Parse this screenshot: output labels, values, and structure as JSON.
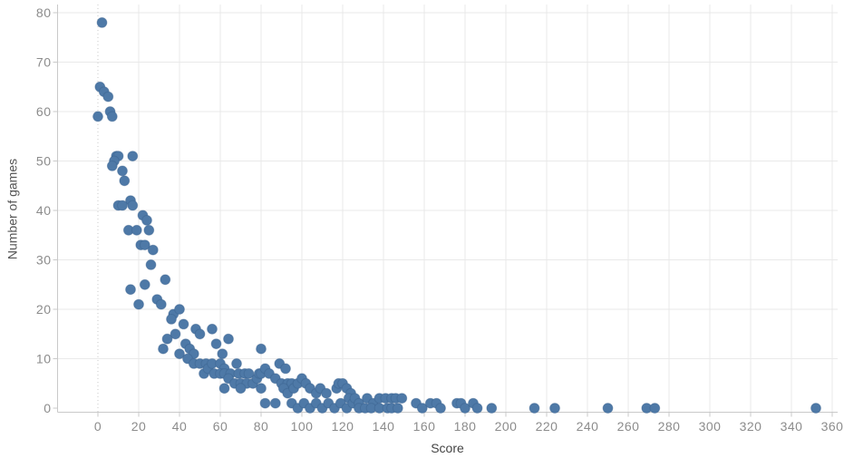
{
  "chart_data": {
    "type": "scatter",
    "title": "",
    "xlabel": "Score",
    "ylabel": "Number of games",
    "x_ticks": [
      0,
      20,
      40,
      60,
      80,
      100,
      120,
      140,
      160,
      180,
      200,
      220,
      240,
      260,
      280,
      300,
      320,
      340,
      360
    ],
    "y_ticks": [
      0,
      10,
      20,
      30,
      40,
      50,
      60,
      70,
      80
    ],
    "xlim": [
      -20,
      363
    ],
    "ylim": [
      -1,
      82
    ],
    "grid": "on",
    "zero_line": "dotted-vertical-at-x0",
    "points": [
      [
        2,
        78
      ],
      [
        1,
        65
      ],
      [
        3,
        64
      ],
      [
        5,
        63
      ],
      [
        0,
        59
      ],
      [
        6,
        60
      ],
      [
        7,
        59
      ],
      [
        9,
        51
      ],
      [
        10,
        51
      ],
      [
        17,
        51
      ],
      [
        8,
        50
      ],
      [
        7,
        49
      ],
      [
        12,
        48
      ],
      [
        13,
        46
      ],
      [
        16,
        42
      ],
      [
        17,
        41
      ],
      [
        10,
        41
      ],
      [
        12,
        41
      ],
      [
        22,
        39
      ],
      [
        24,
        38
      ],
      [
        15,
        36
      ],
      [
        19,
        36
      ],
      [
        25,
        36
      ],
      [
        21,
        33
      ],
      [
        23,
        33
      ],
      [
        27,
        32
      ],
      [
        26,
        29
      ],
      [
        33,
        26
      ],
      [
        23,
        25
      ],
      [
        16,
        24
      ],
      [
        29,
        22
      ],
      [
        31,
        21
      ],
      [
        20,
        21
      ],
      [
        37,
        19
      ],
      [
        36,
        18
      ],
      [
        40,
        20
      ],
      [
        42,
        17
      ],
      [
        48,
        16
      ],
      [
        38,
        15
      ],
      [
        34,
        14
      ],
      [
        32,
        12
      ],
      [
        43,
        13
      ],
      [
        45,
        12
      ],
      [
        40,
        11
      ],
      [
        47,
        11
      ],
      [
        50,
        15
      ],
      [
        56,
        16
      ],
      [
        58,
        13
      ],
      [
        61,
        11
      ],
      [
        64,
        14
      ],
      [
        44,
        10
      ],
      [
        47,
        9
      ],
      [
        50,
        9
      ],
      [
        53,
        9
      ],
      [
        52,
        7
      ],
      [
        54,
        8
      ],
      [
        56,
        9
      ],
      [
        60,
        9
      ],
      [
        68,
        9
      ],
      [
        62,
        8
      ],
      [
        57,
        7
      ],
      [
        60,
        7
      ],
      [
        62,
        7
      ],
      [
        65,
        7
      ],
      [
        69,
        7
      ],
      [
        72,
        7
      ],
      [
        74,
        7
      ],
      [
        64,
        6
      ],
      [
        67,
        5
      ],
      [
        70,
        5
      ],
      [
        73,
        5
      ],
      [
        76,
        5
      ],
      [
        78,
        6
      ],
      [
        62,
        4
      ],
      [
        70,
        4
      ],
      [
        80,
        4
      ],
      [
        79,
        7
      ],
      [
        80,
        7
      ],
      [
        82,
        8
      ],
      [
        84,
        7
      ],
      [
        80,
        12
      ],
      [
        89,
        9
      ],
      [
        92,
        8
      ],
      [
        87,
        6
      ],
      [
        90,
        5
      ],
      [
        93,
        5
      ],
      [
        95,
        5
      ],
      [
        91,
        4
      ],
      [
        93,
        3
      ],
      [
        82,
        1
      ],
      [
        87,
        1
      ],
      [
        96,
        4
      ],
      [
        98,
        5
      ],
      [
        100,
        6
      ],
      [
        102,
        5
      ],
      [
        104,
        4
      ],
      [
        107,
        3
      ],
      [
        109,
        4
      ],
      [
        112,
        3
      ],
      [
        117,
        4
      ],
      [
        118,
        5
      ],
      [
        120,
        5
      ],
      [
        122,
        4
      ],
      [
        124,
        3
      ],
      [
        123,
        2
      ],
      [
        95,
        1
      ],
      [
        98,
        0
      ],
      [
        101,
        1
      ],
      [
        104,
        0
      ],
      [
        107,
        1
      ],
      [
        110,
        0
      ],
      [
        113,
        1
      ],
      [
        116,
        0
      ],
      [
        119,
        1
      ],
      [
        122,
        0
      ],
      [
        125,
        1
      ],
      [
        126,
        2
      ],
      [
        128,
        1
      ],
      [
        132,
        2
      ],
      [
        135,
        1
      ],
      [
        138,
        2
      ],
      [
        141,
        2
      ],
      [
        144,
        2
      ],
      [
        146,
        2
      ],
      [
        149,
        2
      ],
      [
        128,
        0
      ],
      [
        131,
        0
      ],
      [
        134,
        0
      ],
      [
        138,
        0
      ],
      [
        142,
        0
      ],
      [
        144,
        0
      ],
      [
        147,
        0
      ],
      [
        156,
        1
      ],
      [
        159,
        0
      ],
      [
        163,
        1
      ],
      [
        166,
        1
      ],
      [
        168,
        0
      ],
      [
        176,
        1
      ],
      [
        178,
        1
      ],
      [
        180,
        0
      ],
      [
        184,
        1
      ],
      [
        186,
        0
      ],
      [
        193,
        0
      ],
      [
        214,
        0
      ],
      [
        224,
        0
      ],
      [
        250,
        0
      ],
      [
        269,
        0
      ],
      [
        273,
        0
      ],
      [
        352,
        0
      ]
    ]
  },
  "colors": {
    "point_fill": "#4e79a7",
    "point_stroke": "#3a618f",
    "gridline": "#e9e9e9",
    "zero_line": "#c8c8c8",
    "axis_ruler": "#c9c9c9",
    "tick_label": "#8c8c8c",
    "x_title": "#444444",
    "y_title": "#555555",
    "background": "#ffffff"
  }
}
